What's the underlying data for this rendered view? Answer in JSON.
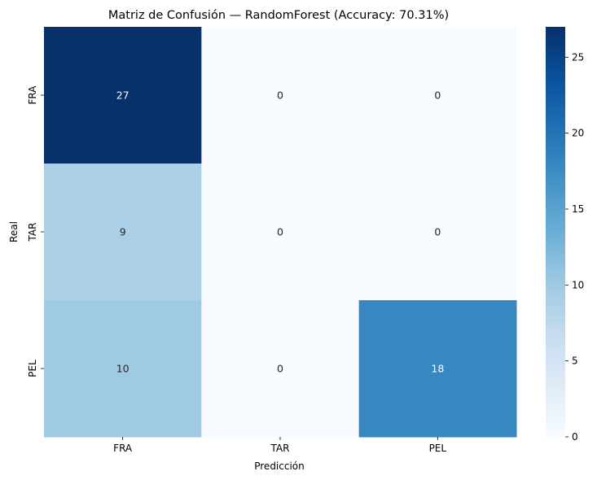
{
  "chart_data": {
    "type": "heatmap",
    "title": "Matriz de Confusión — RandomForest (Accuracy: 70.31%)",
    "xlabel": "Predicción",
    "ylabel": "Real",
    "x_categories": [
      "FRA",
      "TAR",
      "PEL"
    ],
    "y_categories": [
      "FRA",
      "TAR",
      "PEL"
    ],
    "values": [
      [
        27,
        0,
        0
      ],
      [
        9,
        0,
        0
      ],
      [
        10,
        0,
        18
      ]
    ],
    "colorbar": {
      "vmin": 0,
      "vmax": 27,
      "ticks": [
        0,
        5,
        10,
        15,
        20,
        25
      ],
      "colormap": "Blues"
    },
    "grid": false
  }
}
